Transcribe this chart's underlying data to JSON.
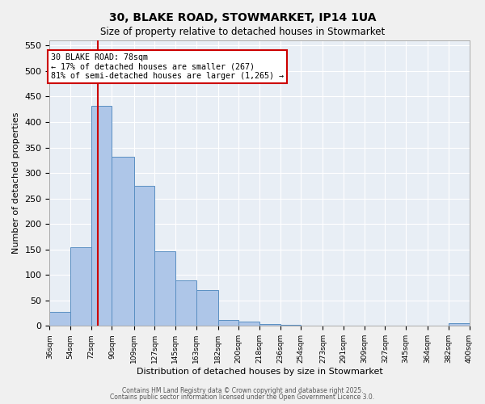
{
  "title": "30, BLAKE ROAD, STOWMARKET, IP14 1UA",
  "subtitle": "Size of property relative to detached houses in Stowmarket",
  "xlabel": "Distribution of detached houses by size in Stowmarket",
  "ylabel": "Number of detached properties",
  "bar_values": [
    28,
    155,
    432,
    331,
    274,
    147,
    89,
    70,
    11,
    8,
    4,
    2,
    1,
    1,
    1,
    1,
    1,
    1,
    1,
    5
  ],
  "bin_edges": [
    36,
    54,
    72,
    90,
    109,
    127,
    145,
    163,
    182,
    200,
    218,
    236,
    254,
    273,
    291,
    309,
    327,
    345,
    364,
    382,
    400
  ],
  "bin_labels": [
    "36sqm",
    "54sqm",
    "72sqm",
    "90sqm",
    "109sqm",
    "127sqm",
    "145sqm",
    "163sqm",
    "182sqm",
    "200sqm",
    "218sqm",
    "236sqm",
    "254sqm",
    "273sqm",
    "291sqm",
    "309sqm",
    "327sqm",
    "345sqm",
    "364sqm",
    "382sqm",
    "400sqm"
  ],
  "bar_color": "#aec6e8",
  "bar_edge_color": "#5a8fc2",
  "red_line_x": 78,
  "annotation_text": "30 BLAKE ROAD: 78sqm\n← 17% of detached houses are smaller (267)\n81% of semi-detached houses are larger (1,265) →",
  "annotation_box_color": "#ffffff",
  "annotation_box_edge": "#cc0000",
  "ylim": [
    0,
    560
  ],
  "yticks": [
    0,
    50,
    100,
    150,
    200,
    250,
    300,
    350,
    400,
    450,
    500,
    550
  ],
  "background_color": "#e8eef5",
  "grid_color": "#ffffff",
  "footer_line1": "Contains HM Land Registry data © Crown copyright and database right 2025.",
  "footer_line2": "Contains public sector information licensed under the Open Government Licence 3.0."
}
